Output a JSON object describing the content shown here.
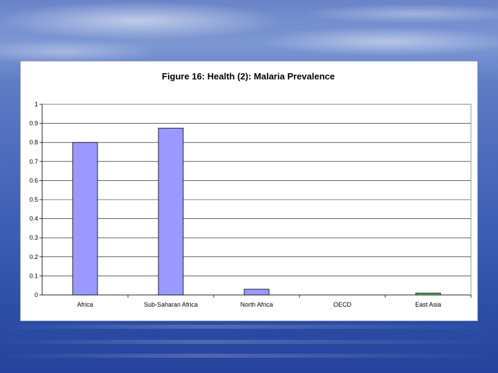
{
  "chart_data": {
    "type": "bar",
    "title": "Figure 16: Health (2): Malaria Prevalence",
    "xlabel": "",
    "ylabel": "",
    "categories": [
      "Africa",
      "Sub-Saharan Africa",
      "North Africa",
      "OECD",
      "East Asia"
    ],
    "values": [
      0.8,
      0.875,
      0.03,
      0,
      0.01
    ],
    "ylim": [
      0,
      1
    ],
    "yticks": [
      "0",
      "0.1",
      "0.2",
      "0.3",
      "0.4",
      "0.5",
      "0.6",
      "0.7",
      "0.8",
      "0.9",
      "1"
    ],
    "grid": true,
    "legend": "none",
    "colors": {
      "bar_default": "#9999ff",
      "bar_highlight": "#66bb66",
      "bar_stroke": "#000000",
      "grid": "#000000"
    },
    "highlight_index": 4
  }
}
